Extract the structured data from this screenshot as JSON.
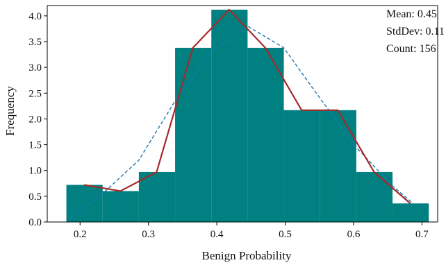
{
  "chart_data": {
    "type": "bar",
    "title": "",
    "xlabel": "Benign Probability",
    "ylabel": "Frequency",
    "xlim": [
      0.152,
      0.723
    ],
    "ylim": [
      0,
      4.2
    ],
    "xticks": [
      0.2,
      0.3,
      0.4,
      0.5,
      0.6,
      0.7
    ],
    "xtick_labels": [
      "0.2",
      "0.3",
      "0.4",
      "0.5",
      "0.6",
      "0.7"
    ],
    "yticks": [
      0,
      0.5,
      1.0,
      1.5,
      2.0,
      2.5,
      3.0,
      3.5,
      4.0
    ],
    "ytick_labels": [
      "0.0",
      "0.5",
      "1.0",
      "1.5",
      "2.0",
      "2.5",
      "3.0",
      "3.5",
      "4.0"
    ],
    "grid": false,
    "colors": {
      "bars": "#008080",
      "frequency_line": "#a52a2a",
      "fit_line": "#1f77b4"
    },
    "bins": [
      {
        "x0": 0.18,
        "x1": 0.233,
        "value": 0.72
      },
      {
        "x0": 0.233,
        "x1": 0.286,
        "value": 0.6
      },
      {
        "x0": 0.286,
        "x1": 0.339,
        "value": 0.97
      },
      {
        "x0": 0.339,
        "x1": 0.392,
        "value": 3.38
      },
      {
        "x0": 0.392,
        "x1": 0.445,
        "value": 4.12
      },
      {
        "x0": 0.445,
        "x1": 0.498,
        "value": 3.38
      },
      {
        "x0": 0.498,
        "x1": 0.551,
        "value": 2.17
      },
      {
        "x0": 0.551,
        "x1": 0.604,
        "value": 2.17
      },
      {
        "x0": 0.604,
        "x1": 0.657,
        "value": 0.97
      },
      {
        "x0": 0.657,
        "x1": 0.71,
        "value": 0.36
      }
    ],
    "series": [
      {
        "style": "solid",
        "x": [
          0.206,
          0.259,
          0.312,
          0.365,
          0.418,
          0.471,
          0.524,
          0.577,
          0.63,
          0.683
        ],
        "y": [
          0.72,
          0.6,
          0.97,
          3.38,
          4.12,
          3.38,
          2.17,
          2.17,
          0.97,
          0.36
        ]
      },
      {
        "style": "dashed",
        "x": [
          0.185,
          0.233,
          0.286,
          0.339,
          0.392,
          0.445,
          0.498,
          0.551,
          0.604,
          0.657,
          0.688
        ],
        "y": [
          0.05,
          0.55,
          1.2,
          2.35,
          3.3,
          3.8,
          3.38,
          2.4,
          1.45,
          0.7,
          0.35
        ]
      }
    ],
    "stats": {
      "mean": "Mean: 0.45",
      "std": "StdDev: 0.11",
      "count": "Count: 156"
    }
  }
}
